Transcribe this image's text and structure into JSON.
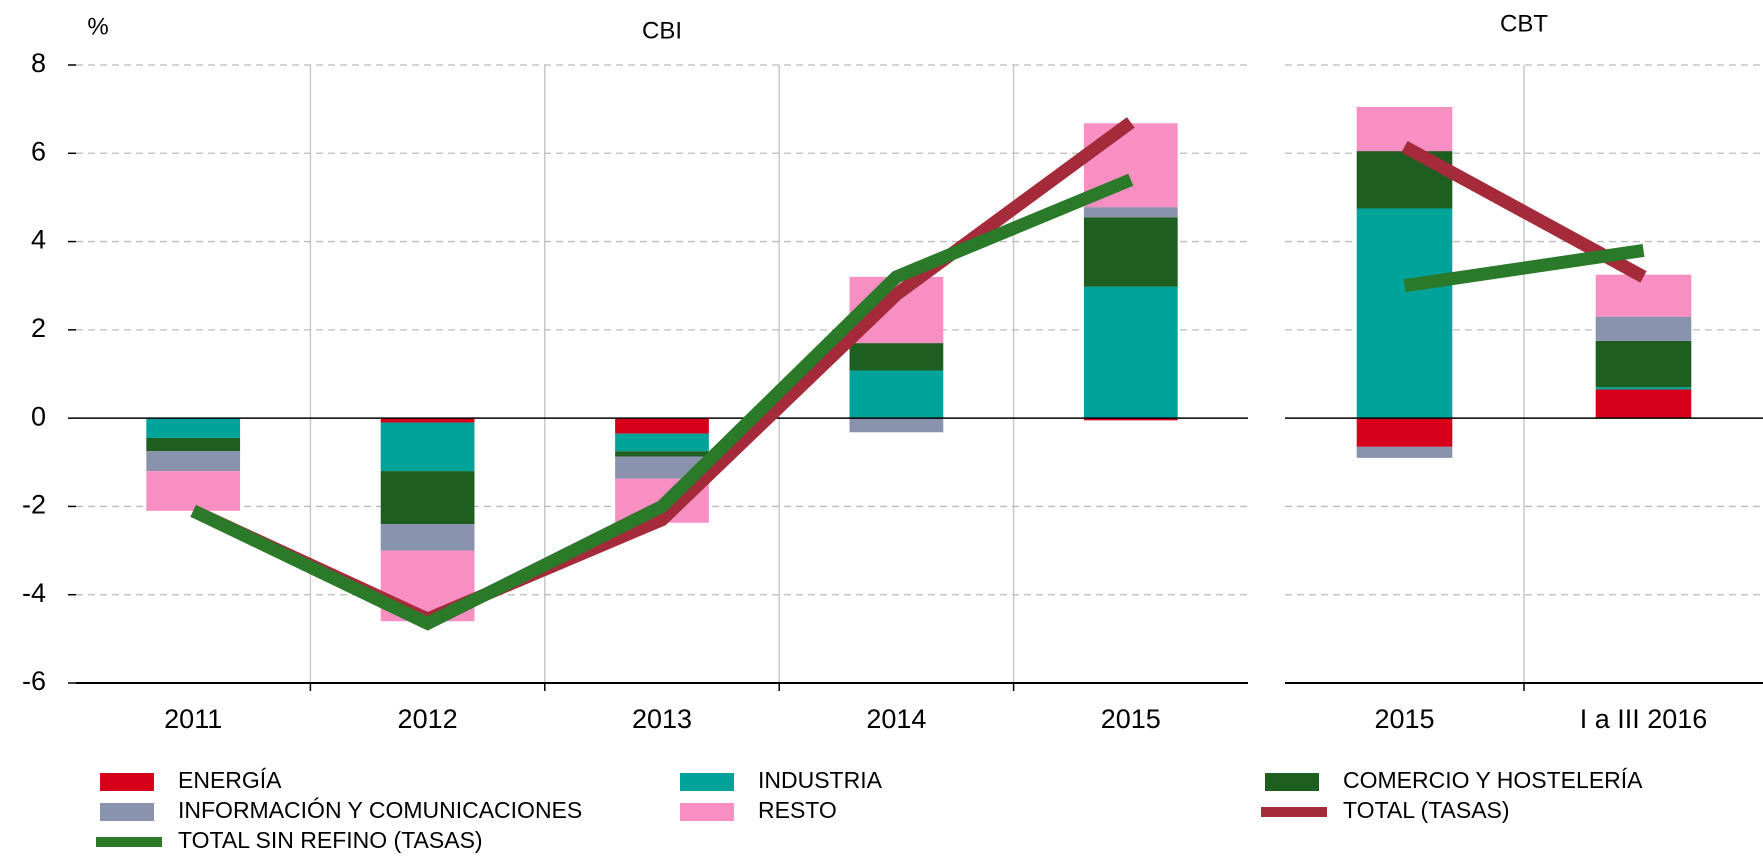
{
  "chart_data": [
    {
      "type": "bar",
      "title": "CBI",
      "y_label": "%",
      "categories": [
        "2011",
        "2012",
        "2013",
        "2014",
        "2015"
      ],
      "ylim": [
        -6,
        8
      ],
      "yticks": [
        -6,
        -4,
        -2,
        0,
        2,
        4,
        6,
        8
      ],
      "grid": true,
      "series": [
        {
          "name": "ENERGÍA",
          "color": "#d7001a",
          "values": [
            0,
            -0.1,
            -0.35,
            0,
            -0.05
          ]
        },
        {
          "name": "INDUSTRIA",
          "color": "#00a39a",
          "values": [
            -0.45,
            -1.1,
            -0.4,
            1.08,
            2.98
          ]
        },
        {
          "name": "COMERCIO Y HOSTELERÍA",
          "color": "#1e5e20",
          "values": [
            -0.3,
            -1.2,
            -0.12,
            0.62,
            1.57
          ]
        },
        {
          "name": "INFORMACIÓN Y COMUNICACIONES",
          "color": "#8a93ad",
          "values": [
            -0.45,
            -0.6,
            -0.5,
            -0.32,
            0.23
          ]
        },
        {
          "name": "RESTO",
          "color": "#f78fc3",
          "values": [
            -0.9,
            -1.6,
            -1.0,
            1.5,
            1.9
          ]
        },
        {
          "name": "TOTAL (TASAS)",
          "type": "line",
          "color": "#a52a3a",
          "values": [
            -2.1,
            -4.55,
            -2.3,
            2.8,
            6.7
          ]
        },
        {
          "name": "TOTAL SIN REFINO (TASAS)",
          "type": "line",
          "color": "#2a7a2a",
          "values": [
            -2.1,
            -4.65,
            -2.0,
            3.2,
            5.4
          ]
        }
      ]
    },
    {
      "type": "bar",
      "title": "CBT",
      "categories": [
        "2015",
        "I a III 2016"
      ],
      "ylim": [
        -6,
        8
      ],
      "yticks": [
        -6,
        -4,
        -2,
        0,
        2,
        4,
        6,
        8
      ],
      "grid": true,
      "series": [
        {
          "color": "#d7001a",
          "values": [
            -0.65,
            0.65
          ]
        },
        {
          "color": "#00a39a",
          "values": [
            4.75,
            0.05
          ]
        },
        {
          "color": "#1e5e20",
          "values": [
            1.3,
            1.05
          ]
        },
        {
          "color": "#8a93ad",
          "values": [
            -0.25,
            0.55
          ]
        },
        {
          "color": "#f78fc3",
          "values": [
            1.0,
            0.95
          ]
        },
        {
          "type": "line",
          "color": "#a52a3a",
          "values": [
            6.15,
            3.2
          ]
        },
        {
          "type": "line",
          "color": "#2a7a2a",
          "values": [
            3.0,
            3.8
          ]
        }
      ]
    }
  ]
}
